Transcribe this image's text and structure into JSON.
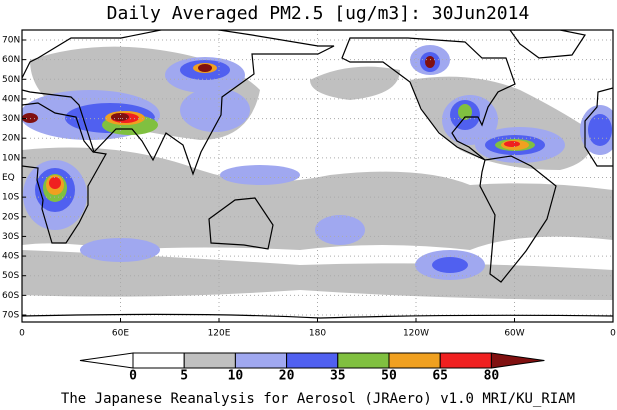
{
  "title": "Daily Averaged PM2.5 [ug/m3]: 30Jun2014",
  "map": {
    "lat_labels": [
      "70N",
      "60N",
      "50N",
      "40N",
      "30N",
      "20N",
      "10N",
      "EQ",
      "10S",
      "20S",
      "30S",
      "40S",
      "50S",
      "60S",
      "70S"
    ],
    "lon_labels": [
      "0",
      "60E",
      "120E",
      "180",
      "120W",
      "60W",
      "0"
    ]
  },
  "colorbar": {
    "levels": [
      0,
      5,
      10,
      20,
      35,
      50,
      65,
      80
    ],
    "colors": [
      "#ffffff",
      "#ffffff",
      "#c0c0c0",
      "#a0a8f0",
      "#5060f0",
      "#80c040",
      "#f0a020",
      "#f02020",
      "#801010"
    ]
  },
  "footer": "The Japanese Reanalysis for Aerosol (JRAero) v1.0 MRI/KU_RIAM"
}
